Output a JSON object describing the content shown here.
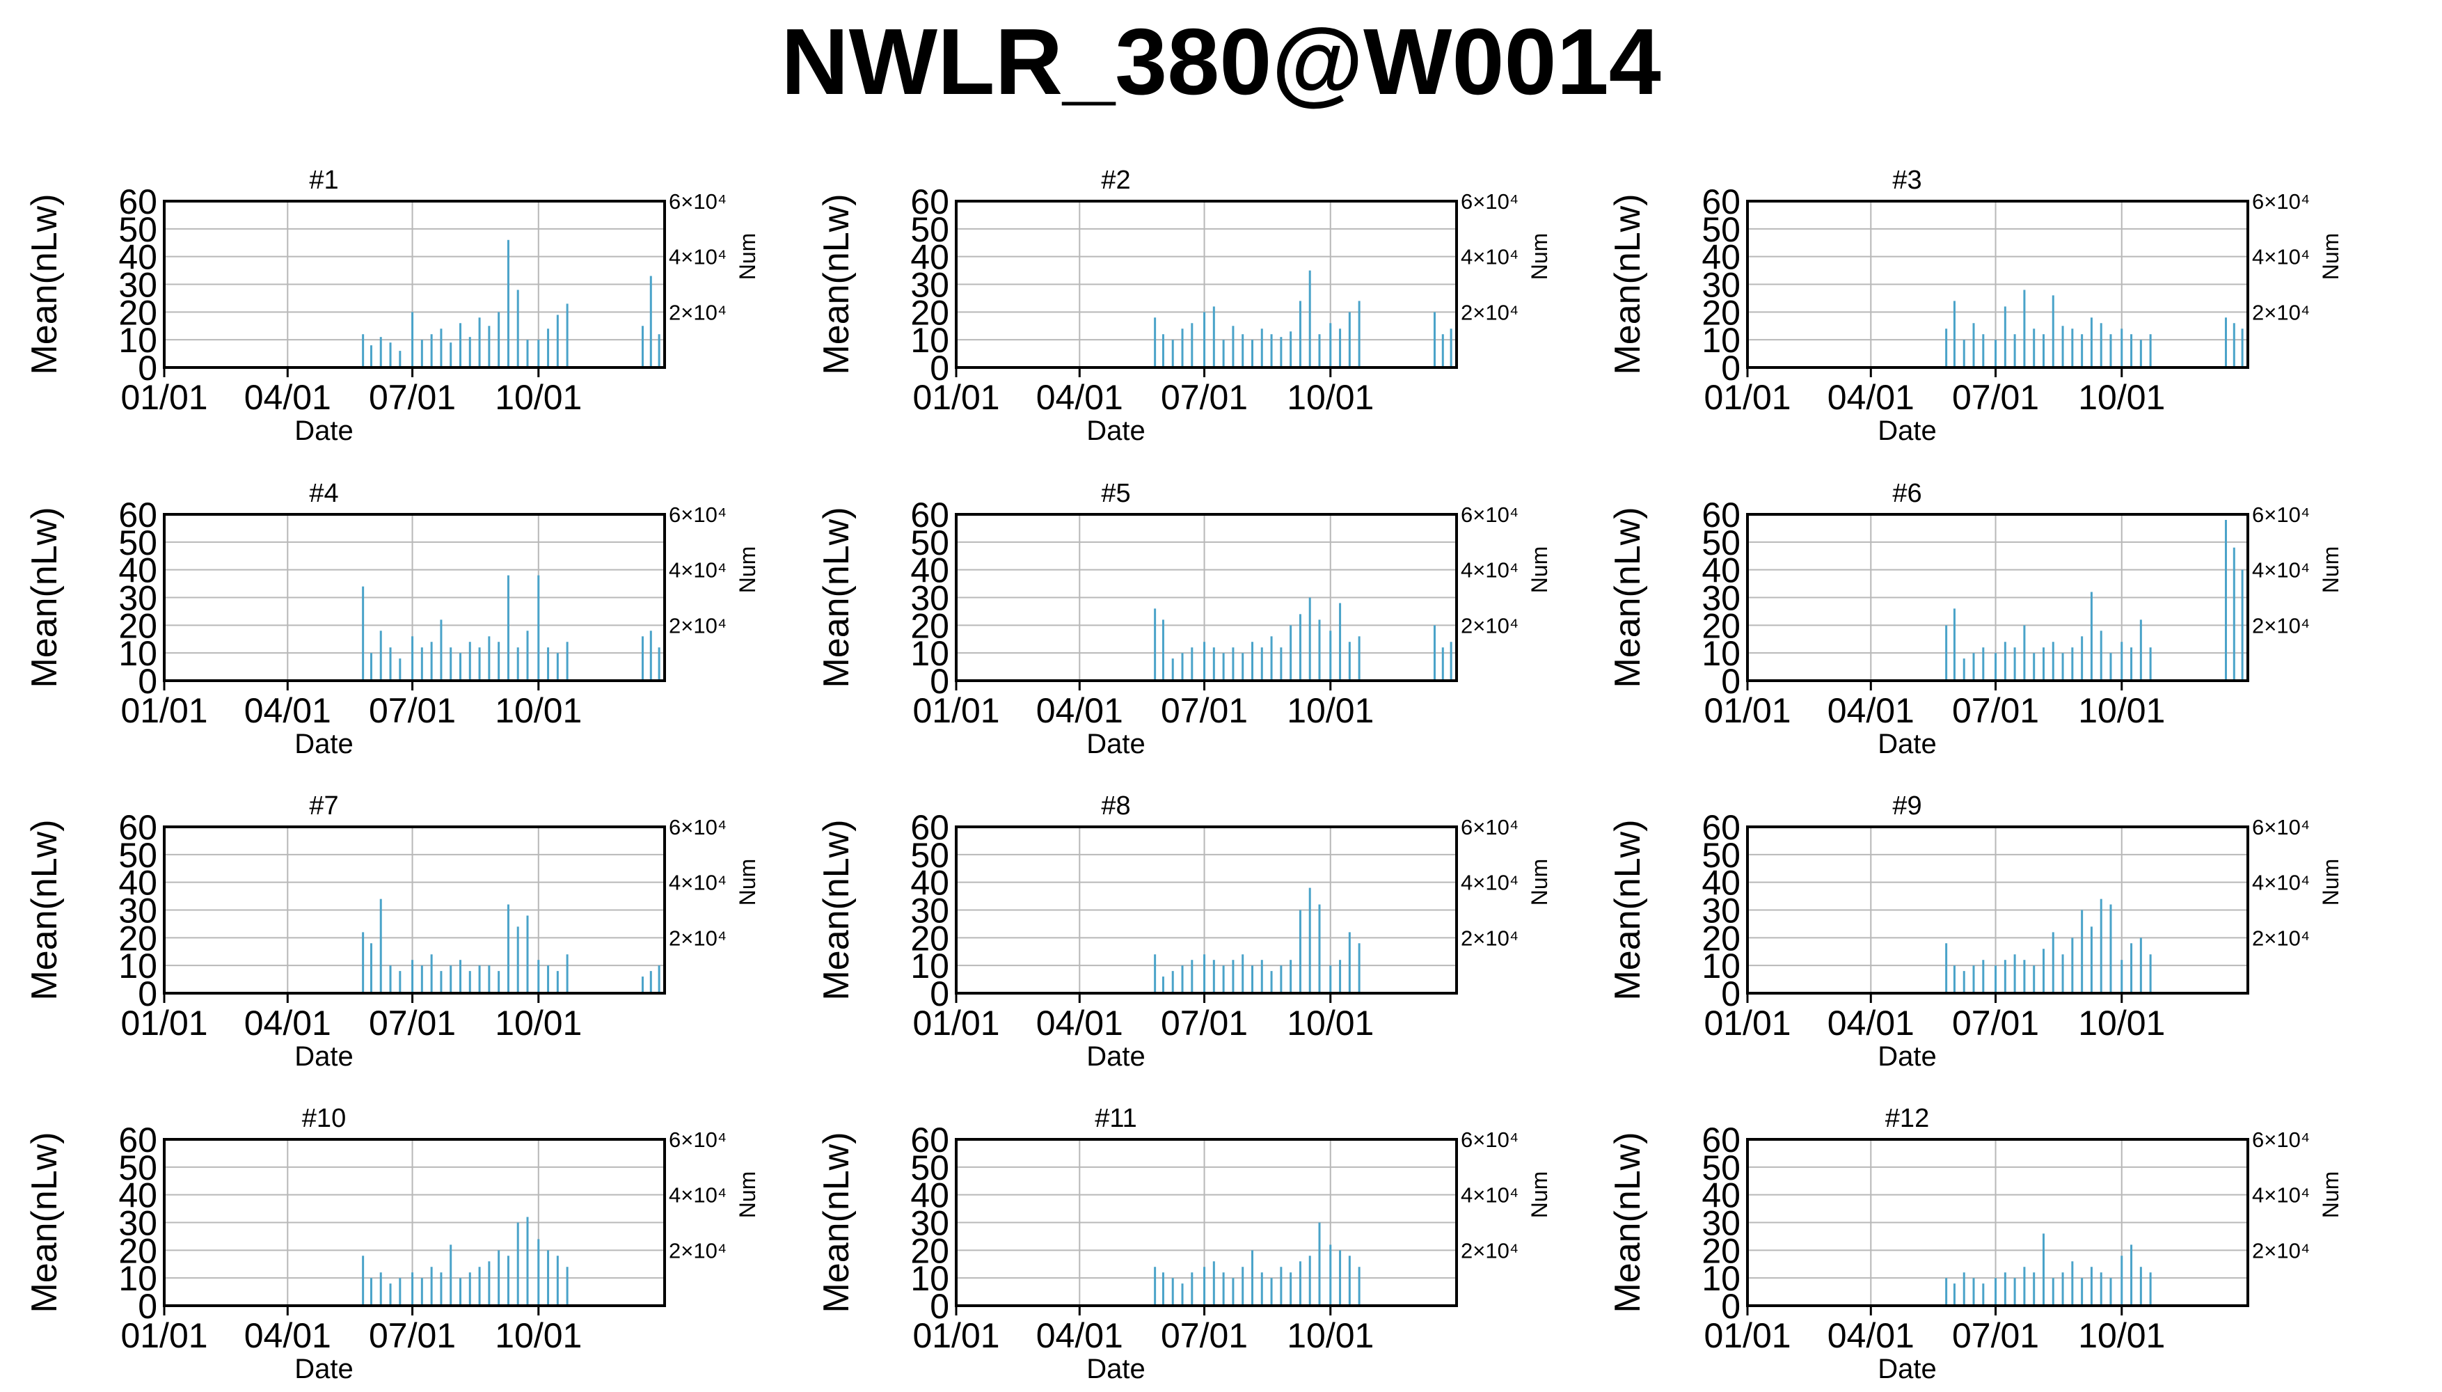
{
  "figure": {
    "title": "NWLR_380@W0014",
    "colors": {
      "series": "#4aa3c9",
      "grid": "#b8b8b8",
      "axis": "#000000",
      "background": "#ffffff"
    }
  },
  "chart_data": [
    {
      "type": "bar",
      "title": "#1",
      "xlabel": "Date",
      "ylabel": "Mean(nLw)",
      "y2label": "Num",
      "x_ticks": [
        "01/01",
        "04/01",
        "07/01",
        "10/01"
      ],
      "y_ticks": [
        "60",
        "50",
        "40",
        "30",
        "20",
        "10",
        "0"
      ],
      "y2_ticks": [
        "6×10⁴",
        "4×10⁴",
        "2×10⁴"
      ],
      "ylim": [
        0,
        60
      ],
      "xlim": [
        "01/01",
        "12/31"
      ],
      "grid": true,
      "x": [
        "05/26",
        "06/01",
        "06/08",
        "06/15",
        "06/22",
        "07/01",
        "07/08",
        "07/15",
        "07/22",
        "07/29",
        "08/05",
        "08/12",
        "08/19",
        "08/26",
        "09/02",
        "09/09",
        "09/16",
        "09/23",
        "10/01",
        "10/08",
        "10/15",
        "10/22",
        "12/16",
        "12/22",
        "12/28"
      ],
      "values": [
        12,
        8,
        11,
        9,
        6,
        20,
        10,
        12,
        14,
        9,
        16,
        11,
        18,
        15,
        20,
        46,
        28,
        10,
        10,
        14,
        19,
        23,
        15,
        33,
        12
      ]
    },
    {
      "type": "bar",
      "title": "#2",
      "xlabel": "Date",
      "ylabel": "Mean(nLw)",
      "y2label": "Num",
      "x_ticks": [
        "01/01",
        "04/01",
        "07/01",
        "10/01"
      ],
      "y_ticks": [
        "60",
        "50",
        "40",
        "30",
        "20",
        "10",
        "0"
      ],
      "y2_ticks": [
        "6×10⁴",
        "4×10⁴",
        "2×10⁴"
      ],
      "ylim": [
        0,
        60
      ],
      "xlim": [
        "01/01",
        "12/31"
      ],
      "grid": true,
      "x": [
        "05/26",
        "06/01",
        "06/08",
        "06/15",
        "06/22",
        "07/01",
        "07/08",
        "07/15",
        "07/22",
        "07/29",
        "08/05",
        "08/12",
        "08/19",
        "08/26",
        "09/02",
        "09/09",
        "09/16",
        "09/23",
        "10/01",
        "10/08",
        "10/15",
        "10/22",
        "12/16",
        "12/22",
        "12/28"
      ],
      "values": [
        18,
        12,
        10,
        14,
        16,
        20,
        22,
        10,
        15,
        12,
        10,
        14,
        12,
        11,
        13,
        24,
        35,
        12,
        16,
        14,
        20,
        24,
        20,
        12,
        14
      ]
    },
    {
      "type": "bar",
      "title": "#3",
      "xlabel": "Date",
      "ylabel": "Mean(nLw)",
      "y2label": "Num",
      "x_ticks": [
        "01/01",
        "04/01",
        "07/01",
        "10/01"
      ],
      "y_ticks": [
        "60",
        "50",
        "40",
        "30",
        "20",
        "10",
        "0"
      ],
      "y2_ticks": [
        "6×10⁴",
        "4×10⁴",
        "2×10⁴"
      ],
      "ylim": [
        0,
        60
      ],
      "xlim": [
        "01/01",
        "12/31"
      ],
      "grid": true,
      "x": [
        "05/26",
        "06/01",
        "06/08",
        "06/15",
        "06/22",
        "07/01",
        "07/08",
        "07/15",
        "07/22",
        "07/29",
        "08/05",
        "08/12",
        "08/19",
        "08/26",
        "09/02",
        "09/09",
        "09/16",
        "09/23",
        "10/01",
        "10/08",
        "10/15",
        "10/22",
        "12/16",
        "12/22",
        "12/28"
      ],
      "values": [
        14,
        24,
        10,
        16,
        12,
        10,
        22,
        12,
        28,
        14,
        12,
        26,
        15,
        14,
        12,
        18,
        16,
        12,
        14,
        12,
        10,
        12,
        18,
        16,
        14
      ]
    },
    {
      "type": "bar",
      "title": "#4",
      "xlabel": "Date",
      "ylabel": "Mean(nLw)",
      "y2label": "Num",
      "x_ticks": [
        "01/01",
        "04/01",
        "07/01",
        "10/01"
      ],
      "y_ticks": [
        "60",
        "50",
        "40",
        "30",
        "20",
        "10",
        "0"
      ],
      "y2_ticks": [
        "6×10⁴",
        "4×10⁴",
        "2×10⁴"
      ],
      "ylim": [
        0,
        60
      ],
      "xlim": [
        "01/01",
        "12/31"
      ],
      "grid": true,
      "x": [
        "05/26",
        "06/01",
        "06/08",
        "06/15",
        "06/22",
        "07/01",
        "07/08",
        "07/15",
        "07/22",
        "07/29",
        "08/05",
        "08/12",
        "08/19",
        "08/26",
        "09/02",
        "09/09",
        "09/16",
        "09/23",
        "10/01",
        "10/08",
        "10/15",
        "10/22",
        "12/16",
        "12/22",
        "12/28"
      ],
      "values": [
        34,
        10,
        18,
        12,
        8,
        16,
        12,
        14,
        22,
        12,
        10,
        14,
        12,
        16,
        14,
        38,
        12,
        18,
        38,
        12,
        10,
        14,
        16,
        18,
        12
      ]
    },
    {
      "type": "bar",
      "title": "#5",
      "xlabel": "Date",
      "ylabel": "Mean(nLw)",
      "y2label": "Num",
      "x_ticks": [
        "01/01",
        "04/01",
        "07/01",
        "10/01"
      ],
      "y_ticks": [
        "60",
        "50",
        "40",
        "30",
        "20",
        "10",
        "0"
      ],
      "y2_ticks": [
        "6×10⁴",
        "4×10⁴",
        "2×10⁴"
      ],
      "ylim": [
        0,
        60
      ],
      "xlim": [
        "01/01",
        "12/31"
      ],
      "grid": true,
      "x": [
        "05/26",
        "06/01",
        "06/08",
        "06/15",
        "06/22",
        "07/01",
        "07/08",
        "07/15",
        "07/22",
        "07/29",
        "08/05",
        "08/12",
        "08/19",
        "08/26",
        "09/02",
        "09/09",
        "09/16",
        "09/23",
        "10/01",
        "10/08",
        "10/15",
        "10/22",
        "12/16",
        "12/22",
        "12/28"
      ],
      "values": [
        26,
        22,
        8,
        10,
        12,
        14,
        12,
        10,
        12,
        10,
        14,
        12,
        16,
        12,
        20,
        24,
        30,
        22,
        18,
        28,
        14,
        16,
        20,
        12,
        14
      ]
    },
    {
      "type": "bar",
      "title": "#6",
      "xlabel": "Date",
      "ylabel": "Mean(nLw)",
      "y2label": "Num",
      "x_ticks": [
        "01/01",
        "04/01",
        "07/01",
        "10/01"
      ],
      "y_ticks": [
        "60",
        "50",
        "40",
        "30",
        "20",
        "10",
        "0"
      ],
      "y2_ticks": [
        "6×10⁴",
        "4×10⁴",
        "2×10⁴"
      ],
      "ylim": [
        0,
        60
      ],
      "xlim": [
        "01/01",
        "12/31"
      ],
      "grid": true,
      "x": [
        "05/26",
        "06/01",
        "06/08",
        "06/15",
        "06/22",
        "07/01",
        "07/08",
        "07/15",
        "07/22",
        "07/29",
        "08/05",
        "08/12",
        "08/19",
        "08/26",
        "09/02",
        "09/09",
        "09/16",
        "09/23",
        "10/01",
        "10/08",
        "10/15",
        "10/22",
        "12/16",
        "12/22",
        "12/28"
      ],
      "values": [
        20,
        26,
        8,
        10,
        12,
        10,
        14,
        12,
        20,
        10,
        12,
        14,
        10,
        12,
        16,
        32,
        18,
        10,
        14,
        12,
        22,
        12,
        58,
        48,
        40
      ]
    },
    {
      "type": "bar",
      "title": "#7",
      "xlabel": "Date",
      "ylabel": "Mean(nLw)",
      "y2label": "Num",
      "x_ticks": [
        "01/01",
        "04/01",
        "07/01",
        "10/01"
      ],
      "y_ticks": [
        "60",
        "50",
        "40",
        "30",
        "20",
        "10",
        "0"
      ],
      "y2_ticks": [
        "6×10⁴",
        "4×10⁴",
        "2×10⁴"
      ],
      "ylim": [
        0,
        60
      ],
      "xlim": [
        "01/01",
        "12/31"
      ],
      "grid": true,
      "x": [
        "05/26",
        "06/01",
        "06/08",
        "06/15",
        "06/22",
        "07/01",
        "07/08",
        "07/15",
        "07/22",
        "07/29",
        "08/05",
        "08/12",
        "08/19",
        "08/26",
        "09/02",
        "09/09",
        "09/16",
        "09/23",
        "10/01",
        "10/08",
        "10/15",
        "10/22",
        "12/16",
        "12/22",
        "12/28"
      ],
      "values": [
        22,
        18,
        34,
        10,
        8,
        12,
        10,
        14,
        8,
        10,
        12,
        8,
        10,
        10,
        8,
        32,
        24,
        28,
        12,
        10,
        8,
        14,
        6,
        8,
        10
      ]
    },
    {
      "type": "bar",
      "title": "#8",
      "xlabel": "Date",
      "ylabel": "Mean(nLw)",
      "y2label": "Num",
      "x_ticks": [
        "01/01",
        "04/01",
        "07/01",
        "10/01"
      ],
      "y_ticks": [
        "60",
        "50",
        "40",
        "30",
        "20",
        "10",
        "0"
      ],
      "y2_ticks": [
        "6×10⁴",
        "4×10⁴",
        "2×10⁴"
      ],
      "ylim": [
        0,
        60
      ],
      "xlim": [
        "01/01",
        "12/31"
      ],
      "grid": true,
      "x": [
        "05/26",
        "06/01",
        "06/08",
        "06/15",
        "06/22",
        "07/01",
        "07/08",
        "07/15",
        "07/22",
        "07/29",
        "08/05",
        "08/12",
        "08/19",
        "08/26",
        "09/02",
        "09/09",
        "09/16",
        "09/23",
        "10/01",
        "10/08",
        "10/15",
        "10/22"
      ],
      "values": [
        14,
        6,
        8,
        10,
        12,
        14,
        12,
        10,
        12,
        14,
        10,
        12,
        8,
        10,
        12,
        30,
        38,
        32,
        10,
        12,
        22,
        18
      ]
    },
    {
      "type": "bar",
      "title": "#9",
      "xlabel": "Date",
      "ylabel": "Mean(nLw)",
      "y2label": "Num",
      "x_ticks": [
        "01/01",
        "04/01",
        "07/01",
        "10/01"
      ],
      "y_ticks": [
        "60",
        "50",
        "40",
        "30",
        "20",
        "10",
        "0"
      ],
      "y2_ticks": [
        "6×10⁴",
        "4×10⁴",
        "2×10⁴"
      ],
      "ylim": [
        0,
        60
      ],
      "xlim": [
        "01/01",
        "12/31"
      ],
      "grid": true,
      "x": [
        "05/26",
        "06/01",
        "06/08",
        "06/15",
        "06/22",
        "07/01",
        "07/08",
        "07/15",
        "07/22",
        "07/29",
        "08/05",
        "08/12",
        "08/19",
        "08/26",
        "09/02",
        "09/09",
        "09/16",
        "09/23",
        "10/01",
        "10/08",
        "10/15",
        "10/22"
      ],
      "values": [
        18,
        10,
        8,
        10,
        12,
        10,
        12,
        14,
        12,
        10,
        16,
        22,
        14,
        20,
        30,
        24,
        34,
        32,
        12,
        18,
        20,
        14
      ]
    },
    {
      "type": "bar",
      "title": "#10",
      "xlabel": "Date",
      "ylabel": "Mean(nLw)",
      "y2label": "Num",
      "x_ticks": [
        "01/01",
        "04/01",
        "07/01",
        "10/01"
      ],
      "y_ticks": [
        "60",
        "50",
        "40",
        "30",
        "20",
        "10",
        "0"
      ],
      "y2_ticks": [
        "6×10⁴",
        "4×10⁴",
        "2×10⁴"
      ],
      "ylim": [
        0,
        60
      ],
      "xlim": [
        "01/01",
        "12/31"
      ],
      "grid": true,
      "x": [
        "05/26",
        "06/01",
        "06/08",
        "06/15",
        "06/22",
        "07/01",
        "07/08",
        "07/15",
        "07/22",
        "07/29",
        "08/05",
        "08/12",
        "08/19",
        "08/26",
        "09/02",
        "09/09",
        "09/16",
        "09/23",
        "10/01",
        "10/08",
        "10/15",
        "10/22"
      ],
      "values": [
        18,
        10,
        12,
        8,
        10,
        12,
        10,
        14,
        12,
        22,
        10,
        12,
        14,
        16,
        20,
        18,
        30,
        32,
        24,
        20,
        18,
        14
      ]
    },
    {
      "type": "bar",
      "title": "#11",
      "xlabel": "Date",
      "ylabel": "Mean(nLw)",
      "y2label": "Num",
      "x_ticks": [
        "01/01",
        "04/01",
        "07/01",
        "10/01"
      ],
      "y_ticks": [
        "60",
        "50",
        "40",
        "30",
        "20",
        "10",
        "0"
      ],
      "y2_ticks": [
        "6×10⁴",
        "4×10⁴",
        "2×10⁴"
      ],
      "ylim": [
        0,
        60
      ],
      "xlim": [
        "01/01",
        "12/31"
      ],
      "grid": true,
      "x": [
        "05/26",
        "06/01",
        "06/08",
        "06/15",
        "06/22",
        "07/01",
        "07/08",
        "07/15",
        "07/22",
        "07/29",
        "08/05",
        "08/12",
        "08/19",
        "08/26",
        "09/02",
        "09/09",
        "09/16",
        "09/23",
        "10/01",
        "10/08",
        "10/15",
        "10/22"
      ],
      "values": [
        14,
        12,
        10,
        8,
        12,
        14,
        16,
        12,
        10,
        14,
        20,
        12,
        10,
        14,
        12,
        16,
        18,
        30,
        22,
        20,
        18,
        14
      ]
    },
    {
      "type": "bar",
      "title": "#12",
      "xlabel": "Date",
      "ylabel": "Mean(nLw)",
      "y2label": "Num",
      "x_ticks": [
        "01/01",
        "04/01",
        "07/01",
        "10/01"
      ],
      "y_ticks": [
        "60",
        "50",
        "40",
        "30",
        "20",
        "10",
        "0"
      ],
      "y2_ticks": [
        "6×10⁴",
        "4×10⁴",
        "2×10⁴"
      ],
      "ylim": [
        0,
        60
      ],
      "xlim": [
        "01/01",
        "12/31"
      ],
      "grid": true,
      "x": [
        "05/26",
        "06/01",
        "06/08",
        "06/15",
        "06/22",
        "07/01",
        "07/08",
        "07/15",
        "07/22",
        "07/29",
        "08/05",
        "08/12",
        "08/19",
        "08/26",
        "09/02",
        "09/09",
        "09/16",
        "09/23",
        "10/01",
        "10/08",
        "10/15",
        "10/22"
      ],
      "values": [
        10,
        8,
        12,
        10,
        8,
        10,
        12,
        10,
        14,
        12,
        26,
        10,
        12,
        16,
        10,
        14,
        12,
        10,
        18,
        22,
        14,
        12
      ]
    }
  ]
}
